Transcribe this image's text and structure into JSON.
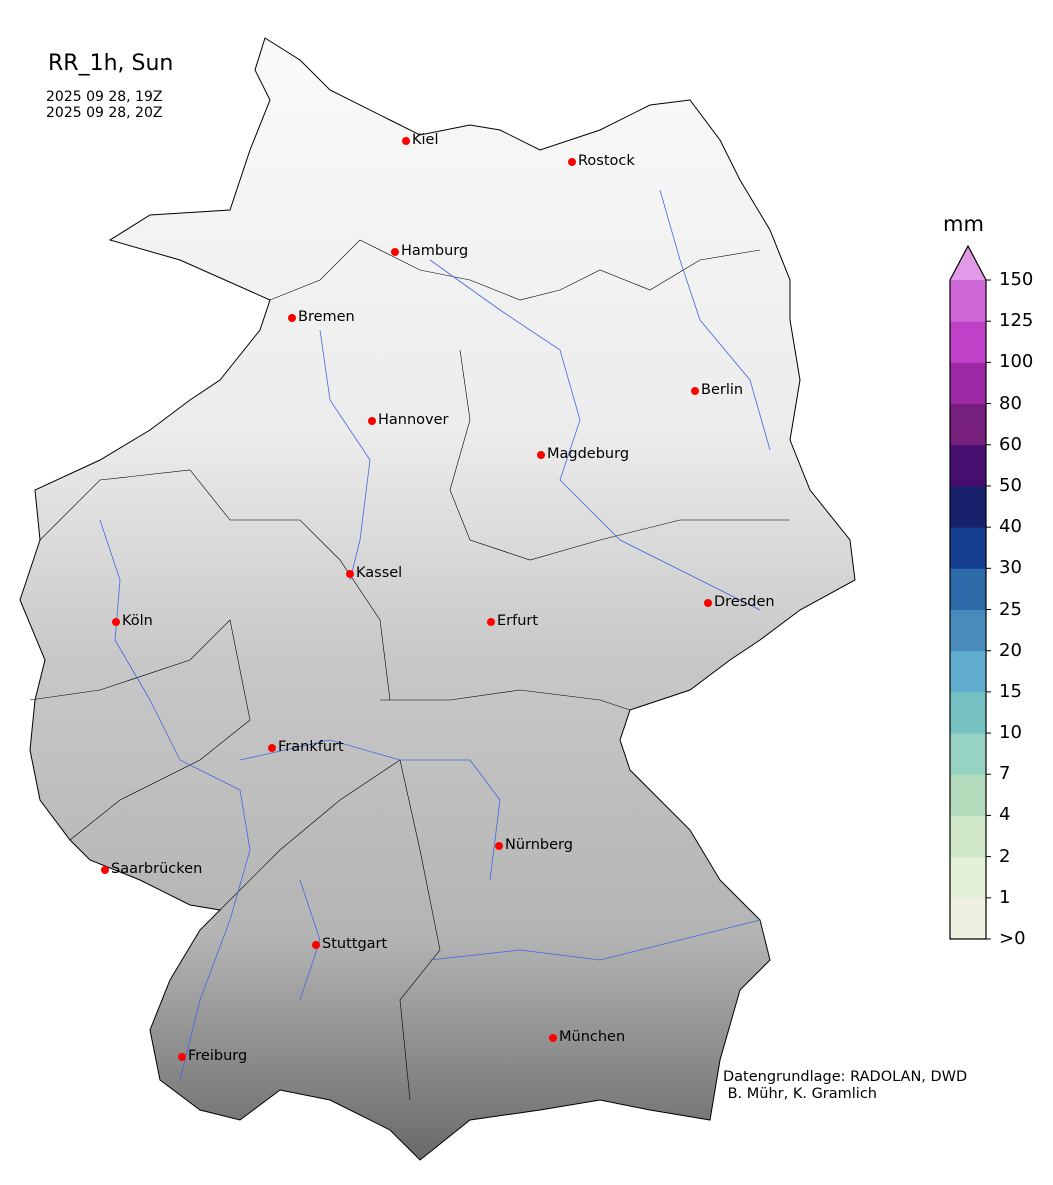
{
  "header": {
    "title": "RR_1h, Sun",
    "time_from": "2025 09 28, 19Z",
    "time_to": "2025 09 28, 20Z"
  },
  "map": {
    "region": "Germany",
    "cities": [
      "Kiel",
      "Rostock",
      "Hamburg",
      "Bremen",
      "Berlin",
      "Hannover",
      "Magdeburg",
      "Kassel",
      "Köln",
      "Erfurt",
      "Dresden",
      "Frankfurt",
      "Nürnberg",
      "Saarbrücken",
      "Stuttgart",
      "München",
      "Freiburg"
    ],
    "city_marker_color": "#ff0000",
    "river_color": "#4169e1",
    "precipitation_shown": false
  },
  "colorbar": {
    "unit": "mm",
    "labels": [
      ">0",
      "1",
      "2",
      "4",
      "7",
      "10",
      "15",
      "20",
      "25",
      "30",
      "40",
      "50",
      "60",
      "80",
      "100",
      "125",
      "150"
    ],
    "colors": [
      "#f0f0e0",
      "#e2f0d8",
      "#d0e8c8",
      "#b2dcbc",
      "#97d3c2",
      "#76c1c1",
      "#62aed0",
      "#4a8bbe",
      "#2c6aa8",
      "#163e8e",
      "#18216b",
      "#460e6f",
      "#771f7d",
      "#9d2aa4",
      "#c040c8",
      "#d068d8"
    ],
    "extend_color": "#e09ae6"
  },
  "credit": {
    "line1": "Datengrundlage: RADOLAN, DWD",
    "line2": " B. Mühr, K. Gramlich"
  }
}
